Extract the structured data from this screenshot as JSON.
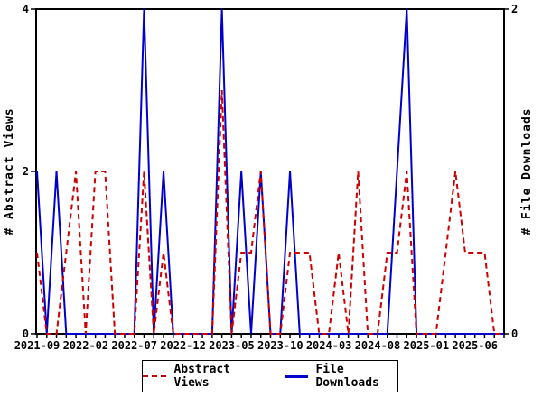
{
  "chart_data": {
    "type": "line",
    "x": [
      "2021-09",
      "2021-10",
      "2021-11",
      "2021-12",
      "2022-01",
      "2022-02",
      "2022-03",
      "2022-04",
      "2022-05",
      "2022-06",
      "2022-07",
      "2022-08",
      "2022-09",
      "2022-10",
      "2022-11",
      "2022-12",
      "2023-01",
      "2023-02",
      "2023-03",
      "2023-04",
      "2023-05",
      "2023-06",
      "2023-07",
      "2023-08",
      "2023-09",
      "2023-10",
      "2023-11",
      "2023-12",
      "2024-01",
      "2024-02",
      "2024-03",
      "2024-04",
      "2024-05",
      "2024-06",
      "2024-07",
      "2024-08",
      "2024-09",
      "2024-10",
      "2024-11",
      "2024-12",
      "2025-01",
      "2025-02",
      "2025-03",
      "2025-04",
      "2025-05",
      "2025-06",
      "2025-07",
      "2025-08",
      "2025-09"
    ],
    "series": [
      {
        "name": "Abstract Views",
        "axis": "left",
        "color": "#cc0000",
        "style": "dashed",
        "values": [
          1,
          0,
          0,
          1,
          2,
          0,
          2,
          2,
          0,
          0,
          0,
          2,
          0,
          1,
          0,
          0,
          0,
          0,
          0,
          3,
          0,
          1,
          1,
          2,
          0,
          0,
          1,
          1,
          1,
          0,
          0,
          1,
          0,
          2,
          0,
          0,
          1,
          1,
          2,
          0,
          0,
          0,
          1,
          2,
          1,
          1,
          1,
          0,
          0
        ]
      },
      {
        "name": "File Downloads",
        "axis": "right",
        "color": "#0000cc",
        "style": "solid",
        "values": [
          1,
          0,
          1,
          0,
          0,
          0,
          0,
          0,
          0,
          0,
          0,
          2,
          0,
          1,
          0,
          0,
          0,
          0,
          0,
          2,
          0,
          1,
          0,
          1,
          0,
          0,
          1,
          0,
          0,
          0,
          0,
          0,
          0,
          0,
          0,
          0,
          0,
          1,
          2,
          0,
          0,
          0,
          0,
          0,
          0,
          0,
          0,
          0,
          0
        ]
      }
    ],
    "left_axis": {
      "label": "# Abstract Views",
      "range": [
        0,
        4
      ],
      "ticks": [
        0,
        2,
        4
      ]
    },
    "right_axis": {
      "label": "# File Downloads",
      "range": [
        0,
        2
      ],
      "ticks": [
        0,
        2
      ]
    },
    "x_tick_label_every": 5,
    "x_tick_labels": [
      "2021-09",
      "2022-02",
      "2022-07",
      "2022-12",
      "2023-05",
      "2023-10",
      "2024-03",
      "2024-08",
      "2025-01",
      "2025-06"
    ],
    "grid": "off",
    "legend_position": "bottom"
  }
}
